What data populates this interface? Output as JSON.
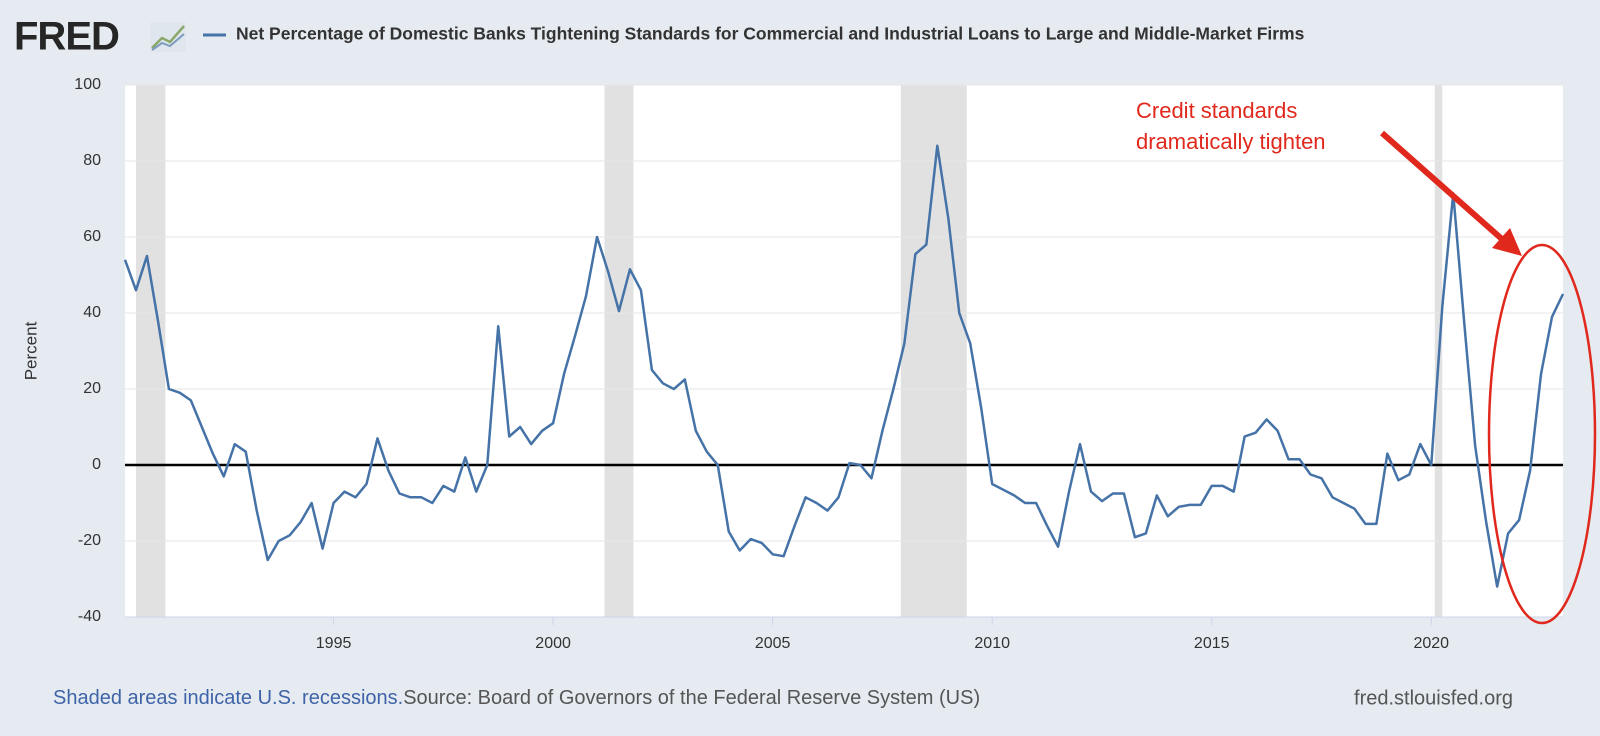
{
  "logo": "FRED",
  "chart_data": {
    "type": "line",
    "series": [
      {
        "name": "Net Percentage of Domestic Banks Tightening Standards for Commercial and Industrial Loans to Large and Middle-Market Firms",
        "color": "#4572a7",
        "values": [
          54,
          46,
          55,
          38,
          20,
          19,
          17,
          10,
          3,
          -3,
          5.5,
          3.5,
          -12,
          -25,
          -20,
          -18.5,
          -15,
          -10,
          -22,
          -10,
          -7,
          -8.5,
          -5,
          7,
          -1.5,
          -7.5,
          -8.5,
          -8.5,
          -10,
          -5.5,
          -7,
          2,
          -7,
          0,
          36.5,
          7.5,
          10,
          5.5,
          9,
          11,
          24,
          34,
          44.5,
          60,
          51,
          40.5,
          51.5,
          46,
          25,
          21.5,
          20,
          22.5,
          9,
          3.5,
          0,
          -17.5,
          -22.5,
          -19.5,
          -20.5,
          -23.5,
          -24,
          -16,
          -8.5,
          -10,
          -12,
          -8.5,
          0.5,
          0,
          -3.5,
          9,
          20,
          32,
          55.5,
          58,
          84,
          65,
          40,
          32,
          15,
          -5,
          -6.5,
          -8,
          -10,
          -10,
          -16,
          -21.5,
          -7,
          5.5,
          -7,
          -9.5,
          -7.5,
          -7.5,
          -19,
          -18,
          -8,
          -13.5,
          -11,
          -10.5,
          -10.5,
          -5.5,
          -5.5,
          -7,
          7.5,
          8.5,
          12,
          9,
          1.5,
          1.5,
          -2.5,
          -3.5,
          -8.5,
          -10,
          -11.5,
          -15.5,
          -15.5,
          3,
          -4,
          -2.5,
          5.5,
          0,
          41.5,
          71.5,
          37.5,
          5,
          -15,
          -32,
          -18,
          -14.5,
          -1.5,
          24,
          39,
          45
        ]
      }
    ],
    "x": [
      1990.25,
      1990.5,
      1990.75,
      1991,
      1991.25,
      1991.5,
      1991.75,
      1992,
      1992.25,
      1992.5,
      1992.75,
      1993,
      1993.25,
      1993.5,
      1993.75,
      1994,
      1994.25,
      1994.5,
      1994.75,
      1995,
      1995.25,
      1995.5,
      1995.75,
      1996,
      1996.25,
      1996.5,
      1996.75,
      1997,
      1997.25,
      1997.5,
      1997.75,
      1998,
      1998.25,
      1998.5,
      1998.75,
      1999,
      1999.25,
      1999.5,
      1999.75,
      2000,
      2000.25,
      2000.5,
      2000.75,
      2001,
      2001.25,
      2001.5,
      2001.75,
      2002,
      2002.25,
      2002.5,
      2002.75,
      2003,
      2003.25,
      2003.5,
      2003.75,
      2004,
      2004.25,
      2004.5,
      2004.75,
      2005,
      2005.25,
      2005.5,
      2005.75,
      2006,
      2006.25,
      2006.5,
      2006.75,
      2007,
      2007.25,
      2007.5,
      2007.75,
      2008,
      2008.25,
      2008.5,
      2008.75,
      2009,
      2009.25,
      2009.5,
      2009.75,
      2010,
      2010.25,
      2010.5,
      2010.75,
      2011,
      2011.25,
      2011.5,
      2011.75,
      2012,
      2012.25,
      2012.5,
      2012.75,
      2013,
      2013.25,
      2013.5,
      2013.75,
      2014,
      2014.25,
      2014.5,
      2014.75,
      2015,
      2015.25,
      2015.5,
      2015.75,
      2016,
      2016.25,
      2016.5,
      2016.75,
      2017,
      2017.25,
      2017.5,
      2017.75,
      2018,
      2018.25,
      2018.5,
      2018.75,
      2019,
      2019.25,
      2019.5,
      2019.75,
      2020,
      2020.25,
      2020.5,
      2020.75,
      2021,
      2021.25,
      2021.5,
      2021.75,
      2022,
      2022.25,
      2022.5,
      2022.75,
      2023
    ],
    "xlim": [
      1990.25,
      2023
    ],
    "xticks": [
      1995,
      2000,
      2005,
      2010,
      2015,
      2020
    ],
    "ylim": [
      -40,
      100
    ],
    "yticks": [
      -40,
      -20,
      0,
      20,
      40,
      60,
      80,
      100
    ],
    "ylabel": "Percent",
    "grid": true,
    "recessions": [
      [
        1990.5,
        1991.17
      ],
      [
        2001.17,
        2001.83
      ],
      [
        2007.92,
        2009.42
      ],
      [
        2020.08,
        2020.25
      ]
    ],
    "annotation": [
      "Credit standards",
      "dramatically tighten"
    ],
    "note": "Shaded areas indicate U.S. recessions.",
    "source": "Source: Board of Governors of the Federal Reserve System (US)",
    "site": "fred.stlouisfed.org"
  }
}
